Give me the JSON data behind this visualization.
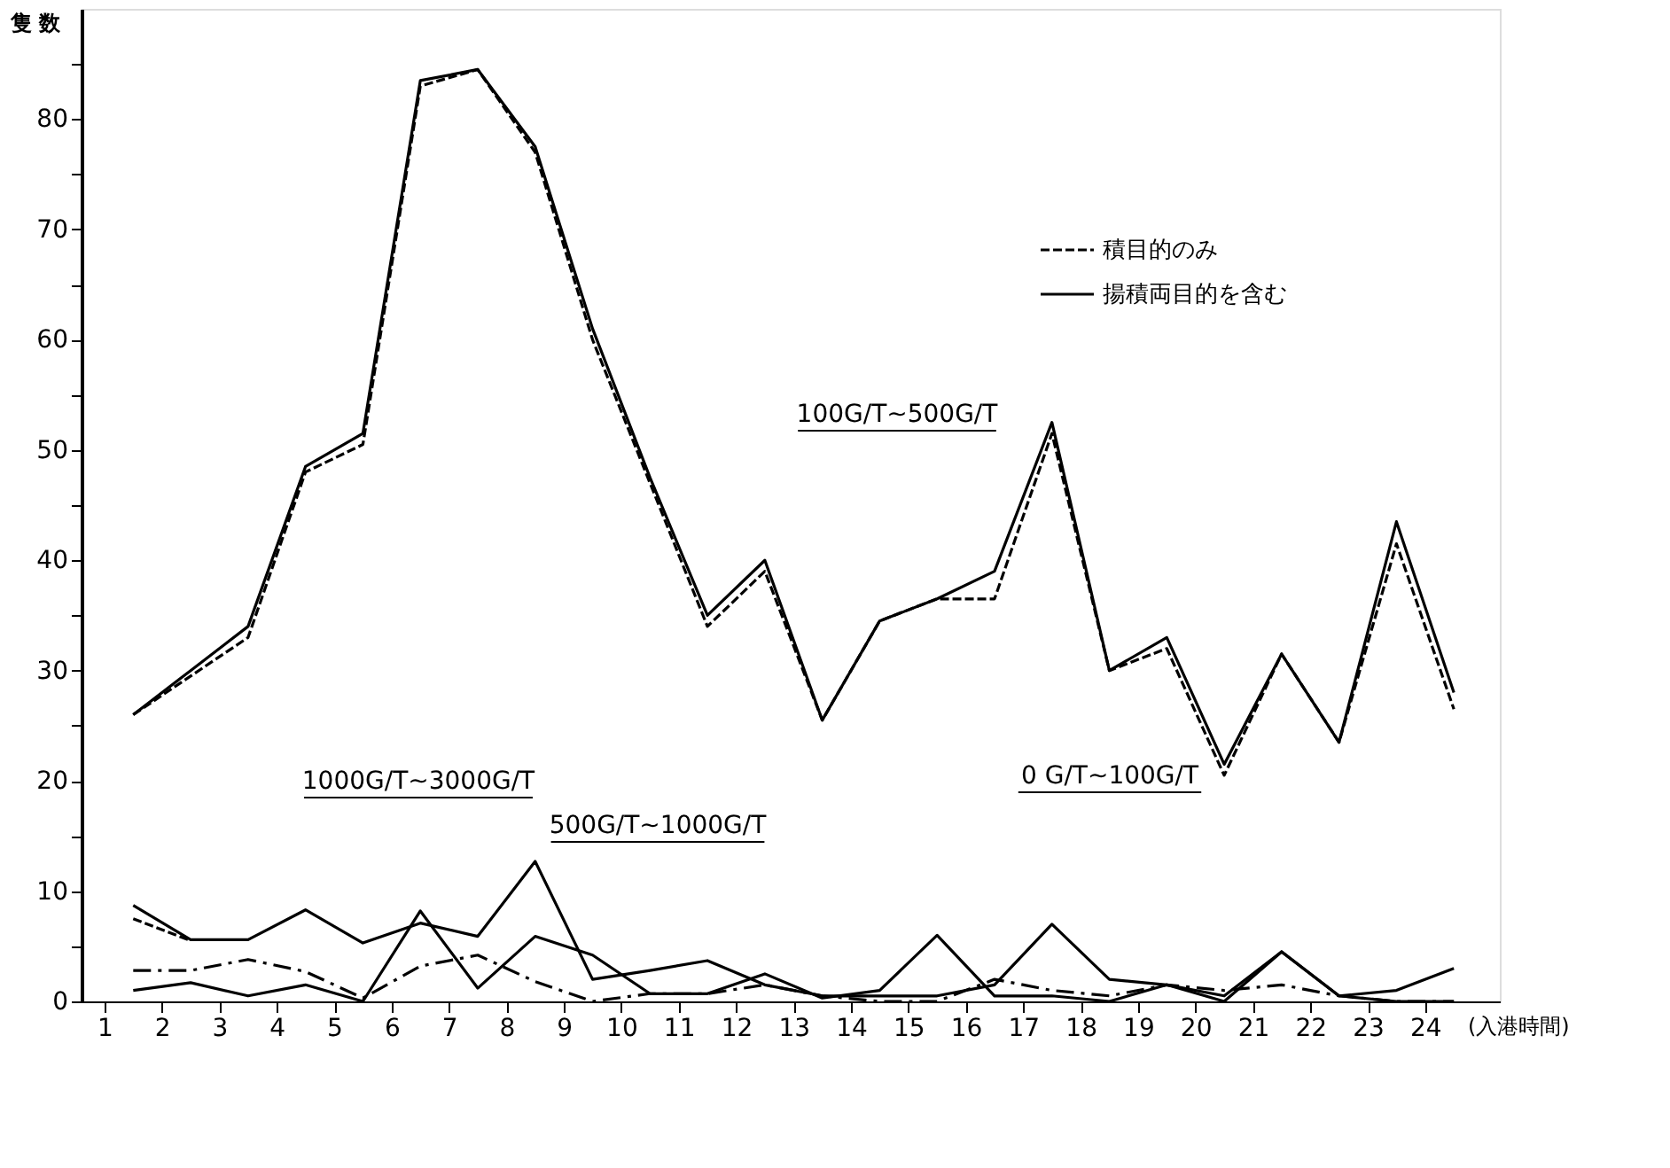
{
  "chart_data": {
    "type": "line",
    "ylabel": "隻 数",
    "xlabel": "(入港時間)",
    "x": [
      1.5,
      2.5,
      3.5,
      4.5,
      5.5,
      6.5,
      7.5,
      8.5,
      9.5,
      10.5,
      11.5,
      12.5,
      13.5,
      14.5,
      15.5,
      16.5,
      17.5,
      18.5,
      19.5,
      20.5,
      21.5,
      22.5,
      23.5,
      24.5
    ],
    "series": [
      {
        "name": "積目的のみ",
        "color": "#000000",
        "line_style": "dashed",
        "values": [
          26,
          29.5,
          33,
          48,
          50.5,
          83,
          84.5,
          77,
          60,
          47,
          34,
          39,
          25.5,
          34.5,
          36.5,
          36.5,
          51.5,
          30,
          32,
          20.5,
          31.5,
          23.5,
          41.5,
          26.5
        ]
      },
      {
        "name": "揚積両目的を含む",
        "color": "#000000",
        "line_style": "solid",
        "values": [
          26,
          30,
          34,
          48.5,
          51.5,
          83.5,
          84.5,
          77.5,
          61,
          47.5,
          35,
          40,
          25.5,
          34.5,
          36.5,
          39,
          52.5,
          30,
          33,
          21.5,
          31.5,
          23.5,
          43.5,
          28
        ]
      },
      {
        "color": "#000000",
        "line_style": "solid",
        "values": [
          8.7,
          5.6,
          5.6,
          8.3,
          5.3,
          7.1,
          5.9,
          12.7,
          2,
          2.8,
          3.7,
          1.5,
          0.5,
          0.5,
          0.5,
          1.5,
          7,
          2,
          1.5,
          0.5,
          4.5,
          0.5,
          1,
          3
        ]
      },
      {
        "color": "#000000",
        "line_style": "dashed",
        "values": [
          7.5,
          5.5,
          null,
          null,
          null,
          null,
          null,
          null,
          null,
          null,
          null,
          null,
          null,
          null,
          null,
          null,
          null,
          null,
          null,
          null,
          null,
          null,
          null,
          null
        ]
      },
      {
        "color": "#000000",
        "line_style": "solid",
        "values": [
          1,
          1.7,
          0.5,
          1.5,
          0,
          8.2,
          1.2,
          5.9,
          4.2,
          0.7,
          0.7,
          2.5,
          0.3,
          1,
          6,
          0.5,
          0.5,
          0,
          1.5,
          0,
          4.5,
          0.5,
          0,
          0
        ]
      },
      {
        "color": "#000000",
        "line_style": "dashdot",
        "values": [
          2.8,
          2.8,
          3.8,
          2.7,
          0.3,
          3.2,
          4.2,
          1.8,
          0,
          0.7,
          0.7,
          1.5,
          0.5,
          0,
          0,
          2,
          1,
          0.5,
          1.5,
          1,
          1.5,
          0.5,
          0,
          0
        ]
      }
    ],
    "annotations": [
      "100G/T~500G/T",
      "1000G/T~3000G/T",
      "500G/T~1000G/T",
      "0 G/T~100G/T"
    ],
    "xlim": [
      0.6,
      25.3
    ],
    "ylim": [
      0,
      90
    ],
    "xticks": [
      1,
      2,
      3,
      4,
      5,
      6,
      7,
      8,
      9,
      10,
      11,
      12,
      13,
      14,
      15,
      16,
      17,
      18,
      19,
      20,
      21,
      22,
      23,
      24
    ],
    "yticks": [
      0,
      {
        "value": 5,
        "label": null
      },
      10,
      {
        "value": 15,
        "label": null
      },
      20,
      {
        "value": 25,
        "label": null
      },
      30,
      {
        "value": 35,
        "label": null
      },
      40,
      {
        "value": 45,
        "label": null
      },
      50,
      {
        "value": 55,
        "label": null
      },
      60,
      {
        "value": 65,
        "label": null
      },
      70,
      {
        "value": 75,
        "label": null
      },
      80,
      {
        "value": 85,
        "label": null
      }
    ],
    "grid": false,
    "legend": "top right"
  }
}
